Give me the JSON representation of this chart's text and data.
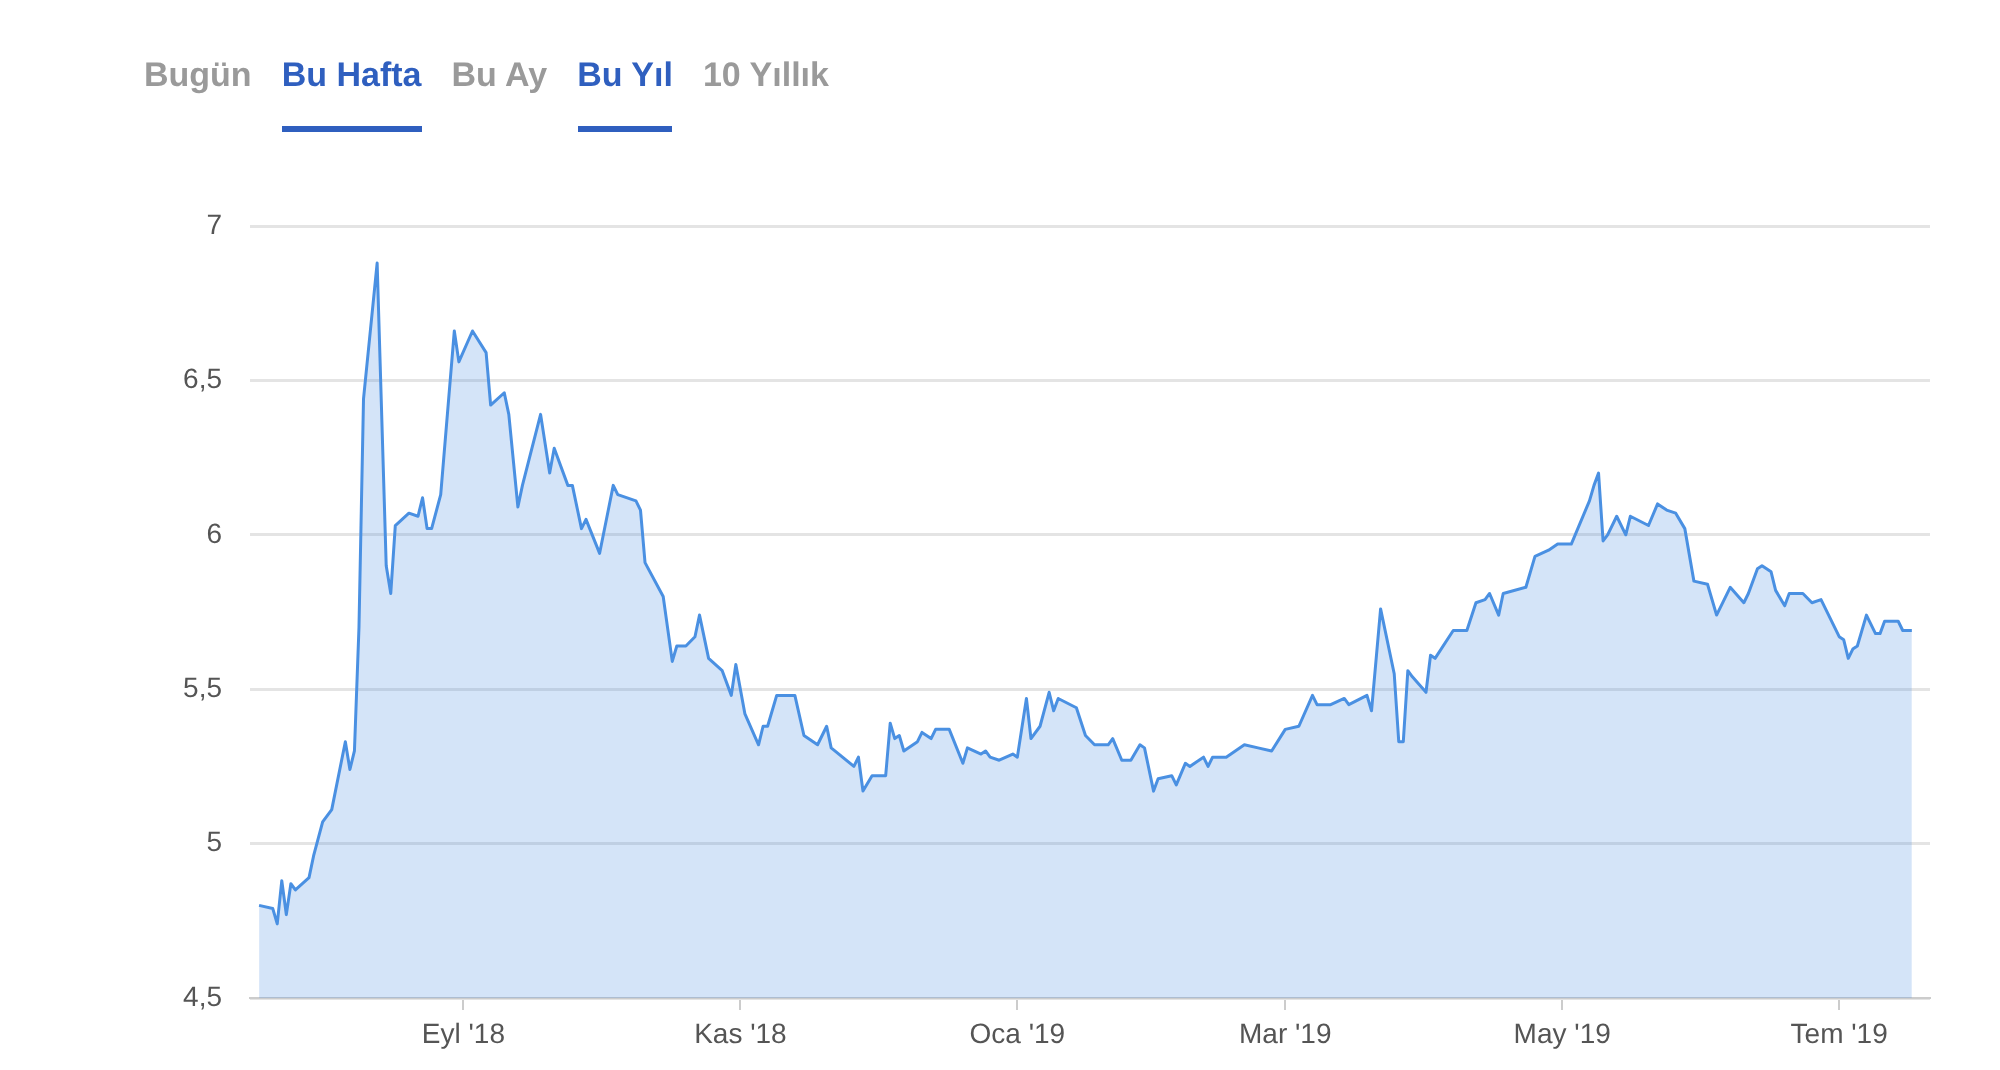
{
  "chart_data": {
    "type": "area",
    "annotations": [
      "Bugün",
      "Bu Hafta",
      "Bu Ay",
      "Bu Yıl",
      "10 Yıllık"
    ],
    "x": [
      "2018-07-18",
      "2018-07-21",
      "2018-07-22",
      "2018-07-23",
      "2018-07-24",
      "2018-07-25",
      "2018-07-26",
      "2018-07-29",
      "2018-07-30",
      "2018-08-01",
      "2018-08-03",
      "2018-08-06",
      "2018-08-07",
      "2018-08-08",
      "2018-08-09",
      "2018-08-10",
      "2018-08-13",
      "2018-08-15",
      "2018-08-16",
      "2018-08-17",
      "2018-08-20",
      "2018-08-22",
      "2018-08-23",
      "2018-08-24",
      "2018-08-25",
      "2018-08-27",
      "2018-08-30",
      "2018-08-31",
      "2018-09-03",
      "2018-09-06",
      "2018-09-07",
      "2018-09-10",
      "2018-09-11",
      "2018-09-13",
      "2018-09-14",
      "2018-09-18",
      "2018-09-20",
      "2018-09-21",
      "2018-09-24",
      "2018-09-25",
      "2018-09-27",
      "2018-09-28",
      "2018-10-01",
      "2018-10-04",
      "2018-10-05",
      "2018-10-09",
      "2018-10-10",
      "2018-10-11",
      "2018-10-15",
      "2018-10-17",
      "2018-10-18",
      "2018-10-20",
      "2018-10-22",
      "2018-10-23",
      "2018-10-25",
      "2018-10-28",
      "2018-10-30",
      "2018-10-31",
      "2018-11-02",
      "2018-11-05",
      "2018-11-06",
      "2018-11-07",
      "2018-11-09",
      "2018-11-12",
      "2018-11-13",
      "2018-11-15",
      "2018-11-18",
      "2018-11-20",
      "2018-11-21",
      "2018-11-26",
      "2018-11-27",
      "2018-11-28",
      "2018-11-30",
      "2018-12-03",
      "2018-12-04",
      "2018-12-05",
      "2018-12-06",
      "2018-12-07",
      "2018-12-10",
      "2018-12-11",
      "2018-12-13",
      "2018-12-14",
      "2018-12-17",
      "2018-12-20",
      "2018-12-21",
      "2018-12-24",
      "2018-12-25",
      "2018-12-26",
      "2018-12-28",
      "2018-12-31",
      "2019-01-01",
      "2019-01-03",
      "2019-01-04",
      "2019-01-06",
      "2019-01-08",
      "2019-01-09",
      "2019-01-10",
      "2019-01-14",
      "2019-01-16",
      "2019-01-18",
      "2019-01-21",
      "2019-01-22",
      "2019-01-24",
      "2019-01-26",
      "2019-01-28",
      "2019-01-29",
      "2019-01-31",
      "2019-02-01",
      "2019-02-04",
      "2019-02-05",
      "2019-02-07",
      "2019-02-08",
      "2019-02-11",
      "2019-02-12",
      "2019-02-13",
      "2019-02-16",
      "2019-02-18",
      "2019-02-20",
      "2019-02-23",
      "2019-02-26",
      "2019-03-01",
      "2019-03-04",
      "2019-03-07",
      "2019-03-08",
      "2019-03-11",
      "2019-03-14",
      "2019-03-15",
      "2019-03-19",
      "2019-03-20",
      "2019-03-22",
      "2019-03-25",
      "2019-03-26",
      "2019-03-27",
      "2019-03-28",
      "2019-03-29",
      "2019-04-01",
      "2019-04-02",
      "2019-04-03",
      "2019-04-07",
      "2019-04-10",
      "2019-04-12",
      "2019-04-14",
      "2019-04-15",
      "2019-04-17",
      "2019-04-18",
      "2019-04-23",
      "2019-04-25",
      "2019-04-28",
      "2019-04-30",
      "2019-05-03",
      "2019-05-07",
      "2019-05-08",
      "2019-05-09",
      "2019-05-10",
      "2019-05-11",
      "2019-05-13",
      "2019-05-15",
      "2019-05-16",
      "2019-05-20",
      "2019-05-22",
      "2019-05-24",
      "2019-05-26",
      "2019-05-28",
      "2019-05-30",
      "2019-06-02",
      "2019-06-04",
      "2019-06-07",
      "2019-06-10",
      "2019-06-11",
      "2019-06-13",
      "2019-06-14",
      "2019-06-16",
      "2019-06-17",
      "2019-06-19",
      "2019-06-20",
      "2019-06-23",
      "2019-06-25",
      "2019-06-27",
      "2019-07-01",
      "2019-07-02",
      "2019-07-03",
      "2019-07-04",
      "2019-07-05",
      "2019-07-07",
      "2019-07-09",
      "2019-07-10",
      "2019-07-11",
      "2019-07-14",
      "2019-07-15",
      "2019-07-17"
    ],
    "values": [
      4.8,
      4.79,
      4.74,
      4.88,
      4.77,
      4.87,
      4.85,
      4.89,
      4.96,
      5.07,
      5.11,
      5.33,
      5.24,
      5.3,
      5.7,
      6.44,
      6.88,
      5.9,
      5.81,
      6.03,
      6.07,
      6.06,
      6.12,
      6.02,
      6.02,
      6.13,
      6.66,
      6.56,
      6.66,
      6.59,
      6.42,
      6.46,
      6.39,
      6.09,
      6.16,
      6.39,
      6.2,
      6.28,
      6.16,
      6.16,
      6.02,
      6.05,
      5.94,
      6.16,
      6.13,
      6.11,
      6.08,
      5.91,
      5.8,
      5.59,
      5.64,
      5.64,
      5.67,
      5.74,
      5.6,
      5.56,
      5.48,
      5.58,
      5.42,
      5.32,
      5.38,
      5.38,
      5.48,
      5.48,
      5.48,
      5.35,
      5.32,
      5.38,
      5.31,
      5.25,
      5.28,
      5.17,
      5.22,
      5.22,
      5.39,
      5.34,
      5.35,
      5.3,
      5.33,
      5.36,
      5.34,
      5.37,
      5.37,
      5.26,
      5.31,
      5.29,
      5.3,
      5.28,
      5.27,
      5.29,
      5.28,
      5.47,
      5.34,
      5.38,
      5.49,
      5.43,
      5.47,
      5.44,
      5.35,
      5.32,
      5.32,
      5.34,
      5.27,
      5.27,
      5.32,
      5.31,
      5.17,
      5.21,
      5.22,
      5.19,
      5.26,
      5.25,
      5.28,
      5.25,
      5.28,
      5.28,
      5.3,
      5.32,
      5.31,
      5.3,
      5.37,
      5.38,
      5.48,
      5.45,
      5.45,
      5.47,
      5.45,
      5.48,
      5.43,
      5.76,
      5.55,
      5.33,
      5.33,
      5.56,
      5.54,
      5.49,
      5.61,
      5.6,
      5.69,
      5.69,
      5.78,
      5.79,
      5.81,
      5.74,
      5.81,
      5.83,
      5.93,
      5.95,
      5.97,
      5.97,
      6.11,
      6.16,
      6.2,
      5.98,
      6.0,
      6.06,
      6.0,
      6.06,
      6.03,
      6.1,
      6.08,
      6.07,
      6.02,
      5.85,
      5.84,
      5.74,
      5.83,
      5.78,
      5.81,
      5.89,
      5.9,
      5.88,
      5.82,
      5.77,
      5.81,
      5.81,
      5.78,
      5.79,
      5.67,
      5.66,
      5.6,
      5.63,
      5.64,
      5.74,
      5.68,
      5.68,
      5.72,
      5.72,
      5.69,
      5.69
    ],
    "color": "#4a90e2",
    "marker": "none",
    "grid": "y",
    "xlim": [
      "2018-07-16",
      "2019-07-21"
    ],
    "xticks": [
      {
        "value": "2018-09-01",
        "label": "Eyl '18"
      },
      {
        "value": "2018-11-01",
        "label": "Kas '18"
      },
      {
        "value": "2019-01-01",
        "label": "Oca '19"
      },
      {
        "value": "2019-03-01",
        "label": "Mar '19"
      },
      {
        "value": "2019-05-01",
        "label": "May '19"
      },
      {
        "value": "2019-07-01",
        "label": "Tem '19"
      }
    ],
    "ylim": [
      4.5,
      7
    ],
    "yticks": [
      {
        "value": 4.5,
        "label": "4,5"
      },
      5,
      {
        "value": 5.5,
        "label": "5,5"
      },
      6,
      {
        "value": 6.5,
        "label": "6,5"
      },
      7
    ]
  }
}
